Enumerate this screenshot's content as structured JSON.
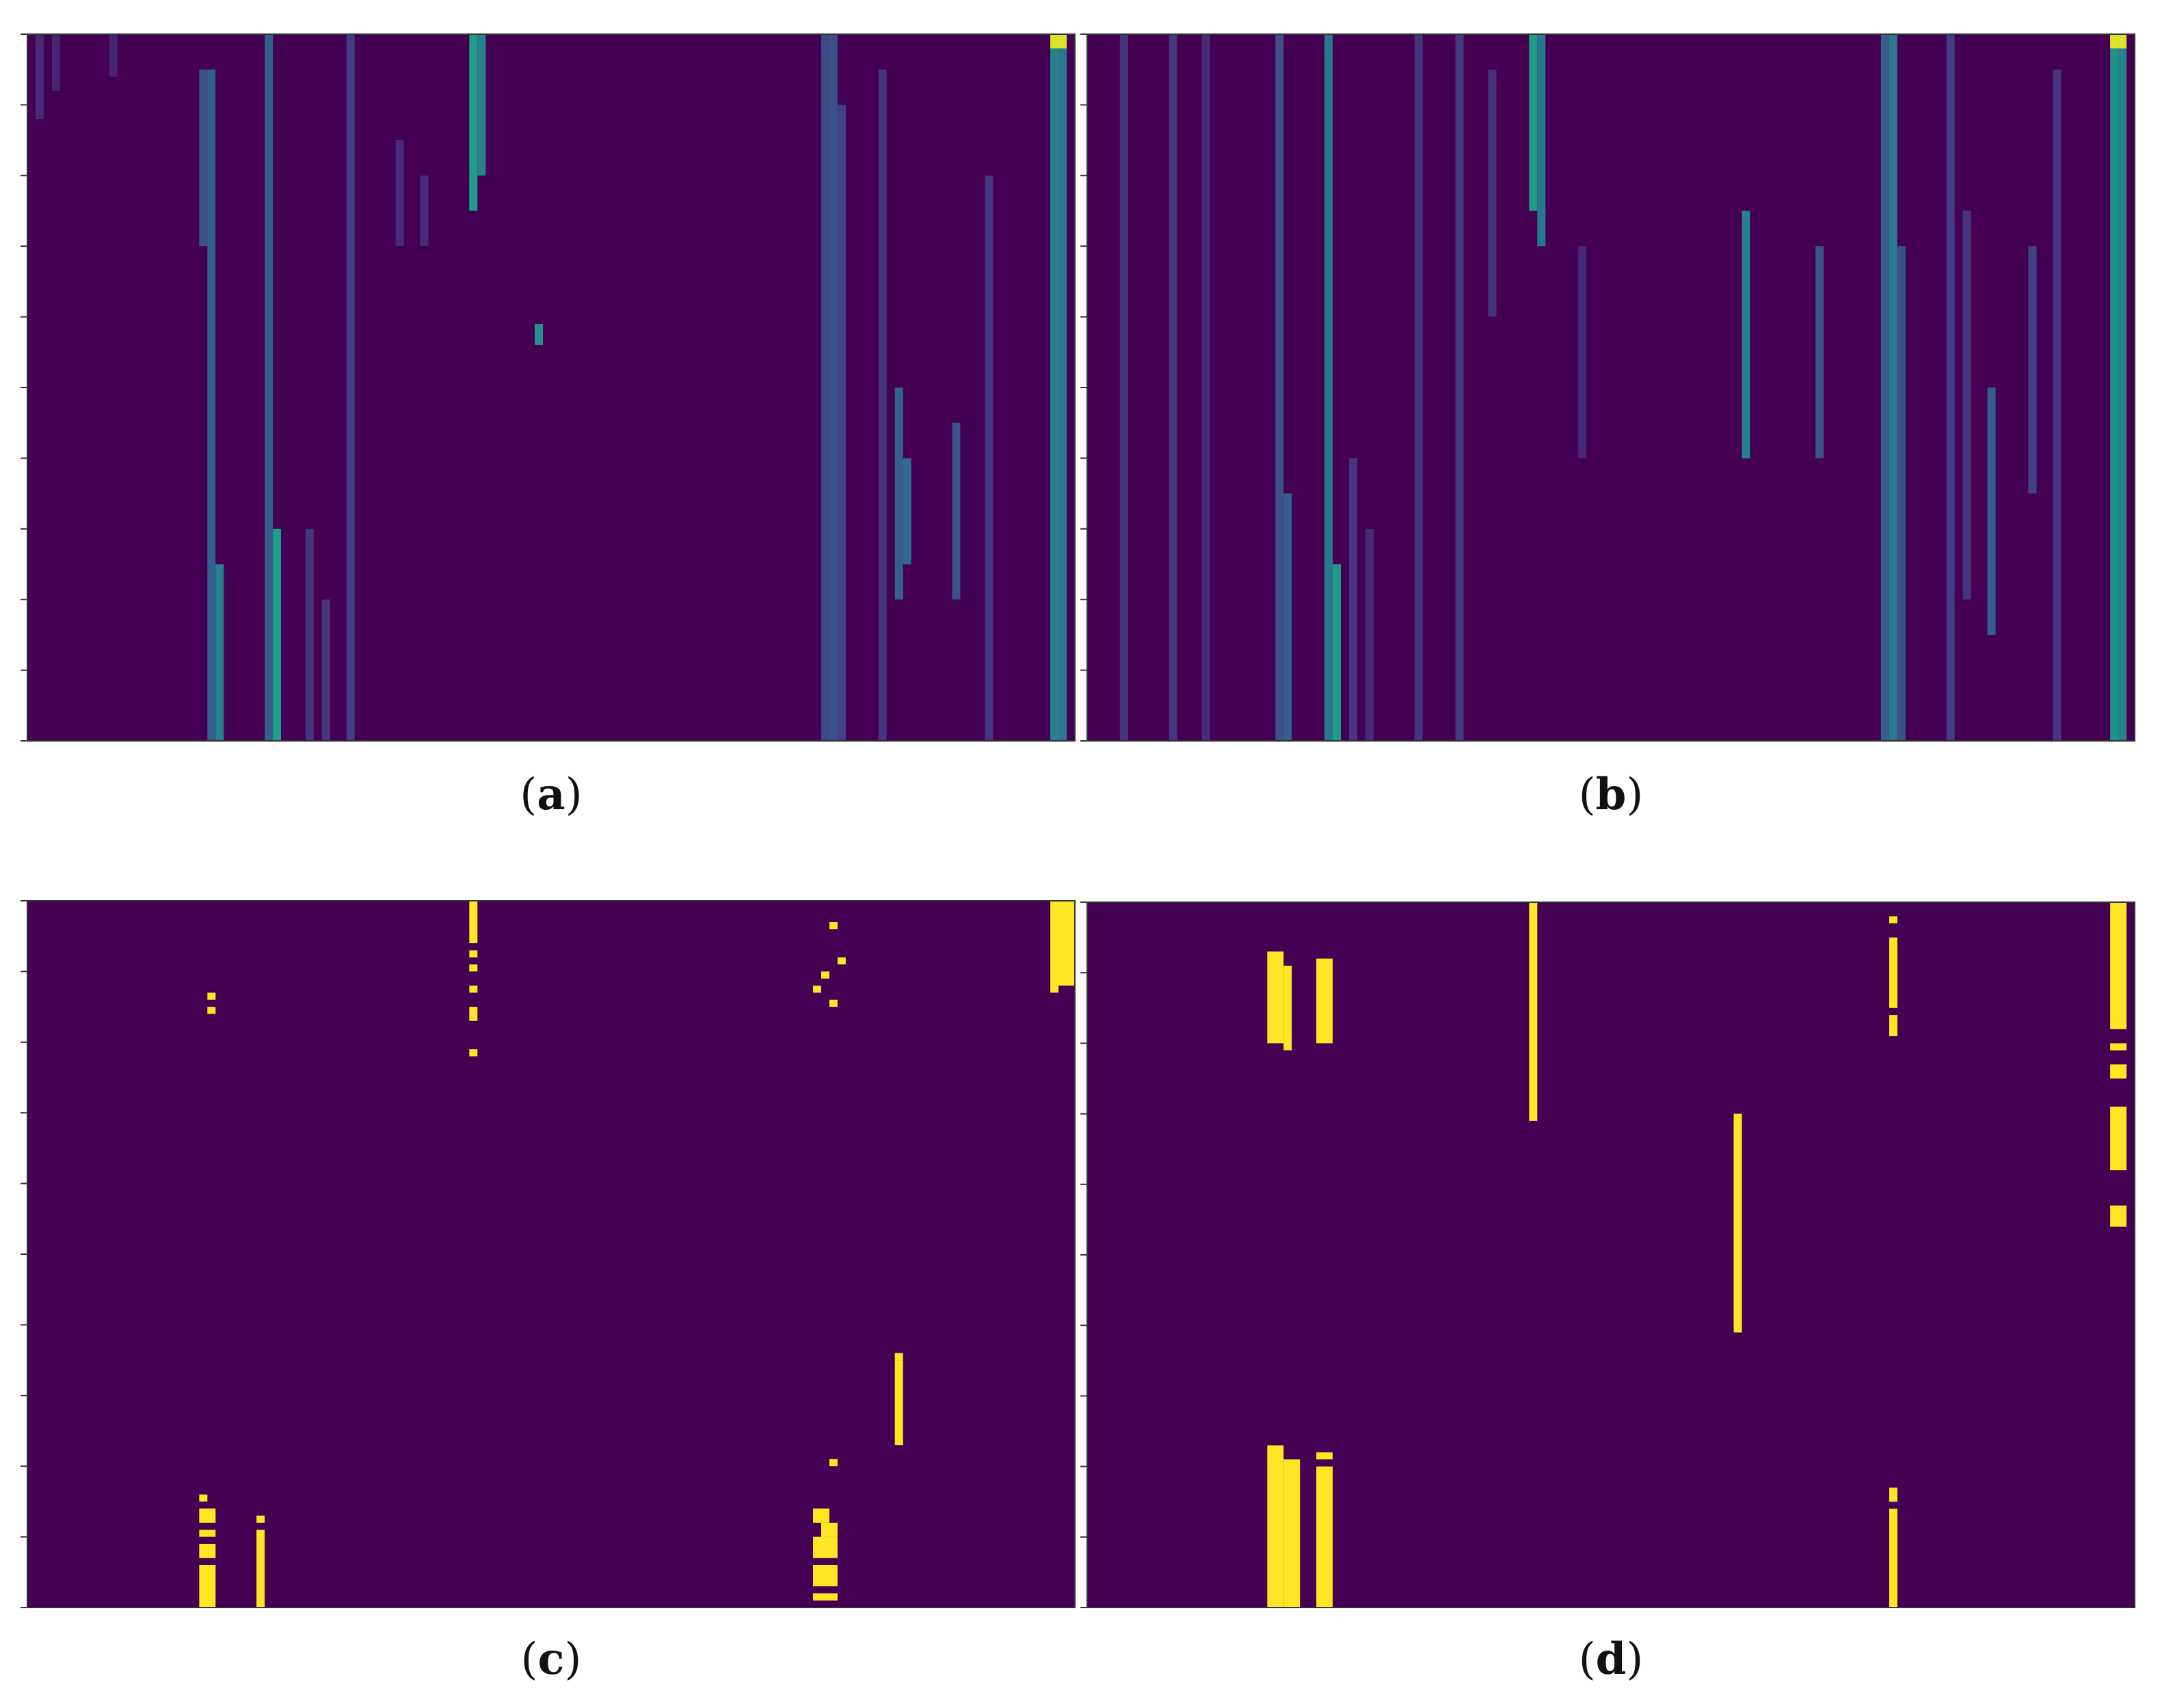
{
  "figure": {
    "background": "#440154",
    "colormap": [
      "#440154",
      "#482878",
      "#3e4989",
      "#31688e",
      "#26828e",
      "#1f9e89",
      "#35b779",
      "#6ece58",
      "#b5de2b",
      "#fde725"
    ],
    "binary_on_color": "#fde725"
  },
  "chart_data": [
    {
      "type": "heatmap",
      "id": "a",
      "caption": "a",
      "value_range": [
        0,
        1
      ],
      "n_columns": 128,
      "n_rows": 100,
      "columns": [
        {
          "col": 1,
          "level": 0.12,
          "rows": [
            0,
            12
          ]
        },
        {
          "col": 3,
          "level": 0.1,
          "rows": [
            0,
            8
          ]
        },
        {
          "col": 10,
          "level": 0.1,
          "rows": [
            0,
            6
          ]
        },
        {
          "col": 21,
          "level": 0.25,
          "rows": [
            5,
            30
          ]
        },
        {
          "col": 22,
          "level": 0.3,
          "rows": [
            5,
            100
          ]
        },
        {
          "col": 23,
          "level": 0.45,
          "rows": [
            75,
            100
          ]
        },
        {
          "col": 29,
          "level": 0.3,
          "rows": [
            0,
            100
          ]
        },
        {
          "col": 30,
          "level": 0.55,
          "rows": [
            70,
            100
          ]
        },
        {
          "col": 34,
          "level": 0.15,
          "rows": [
            70,
            100
          ]
        },
        {
          "col": 36,
          "level": 0.15,
          "rows": [
            80,
            100
          ]
        },
        {
          "col": 39,
          "level": 0.18,
          "rows": [
            0,
            100
          ]
        },
        {
          "col": 45,
          "level": 0.12,
          "rows": [
            15,
            30
          ]
        },
        {
          "col": 48,
          "level": 0.12,
          "rows": [
            20,
            30
          ]
        },
        {
          "col": 54,
          "level": 0.55,
          "rows": [
            0,
            25
          ]
        },
        {
          "col": 55,
          "level": 0.45,
          "rows": [
            0,
            20
          ]
        },
        {
          "col": 62,
          "level": 0.5,
          "rows": [
            41,
            44
          ]
        },
        {
          "col": 97,
          "level": 0.22,
          "rows": [
            0,
            100
          ]
        },
        {
          "col": 98,
          "level": 0.25,
          "rows": [
            0,
            100
          ]
        },
        {
          "col": 99,
          "level": 0.2,
          "rows": [
            10,
            100
          ]
        },
        {
          "col": 104,
          "level": 0.15,
          "rows": [
            5,
            100
          ]
        },
        {
          "col": 106,
          "level": 0.3,
          "rows": [
            50,
            80
          ]
        },
        {
          "col": 107,
          "level": 0.35,
          "rows": [
            60,
            75
          ]
        },
        {
          "col": 113,
          "level": 0.25,
          "rows": [
            55,
            80
          ]
        },
        {
          "col": 117,
          "level": 0.15,
          "rows": [
            20,
            100
          ]
        },
        {
          "col": 125,
          "level": 0.45,
          "rows": [
            0,
            100
          ]
        },
        {
          "col": 126,
          "level": 0.4,
          "rows": [
            0,
            100
          ]
        },
        {
          "col": 125,
          "level": 0.95,
          "rows": [
            0,
            2
          ]
        },
        {
          "col": 126,
          "level": 0.95,
          "rows": [
            0,
            2
          ]
        }
      ]
    },
    {
      "type": "heatmap",
      "id": "b",
      "caption": "b",
      "value_range": [
        0,
        1
      ],
      "n_columns": 128,
      "n_rows": 100,
      "columns": [
        {
          "col": 4,
          "level": 0.15,
          "rows": [
            0,
            100
          ]
        },
        {
          "col": 10,
          "level": 0.15,
          "rows": [
            0,
            100
          ]
        },
        {
          "col": 14,
          "level": 0.12,
          "rows": [
            0,
            100
          ]
        },
        {
          "col": 23,
          "level": 0.25,
          "rows": [
            0,
            100
          ]
        },
        {
          "col": 24,
          "level": 0.3,
          "rows": [
            65,
            100
          ]
        },
        {
          "col": 29,
          "level": 0.4,
          "rows": [
            0,
            100
          ]
        },
        {
          "col": 30,
          "level": 0.55,
          "rows": [
            75,
            100
          ]
        },
        {
          "col": 32,
          "level": 0.15,
          "rows": [
            60,
            100
          ]
        },
        {
          "col": 34,
          "level": 0.12,
          "rows": [
            70,
            100
          ]
        },
        {
          "col": 40,
          "level": 0.15,
          "rows": [
            0,
            100
          ]
        },
        {
          "col": 45,
          "level": 0.18,
          "rows": [
            0,
            100
          ]
        },
        {
          "col": 49,
          "level": 0.15,
          "rows": [
            5,
            40
          ]
        },
        {
          "col": 54,
          "level": 0.55,
          "rows": [
            0,
            25
          ]
        },
        {
          "col": 55,
          "level": 0.4,
          "rows": [
            0,
            30
          ]
        },
        {
          "col": 60,
          "level": 0.12,
          "rows": [
            30,
            60
          ]
        },
        {
          "col": 80,
          "level": 0.45,
          "rows": [
            25,
            60
          ]
        },
        {
          "col": 89,
          "level": 0.25,
          "rows": [
            30,
            60
          ]
        },
        {
          "col": 97,
          "level": 0.3,
          "rows": [
            0,
            100
          ]
        },
        {
          "col": 98,
          "level": 0.4,
          "rows": [
            0,
            100
          ]
        },
        {
          "col": 99,
          "level": 0.25,
          "rows": [
            30,
            100
          ]
        },
        {
          "col": 105,
          "level": 0.18,
          "rows": [
            0,
            100
          ]
        },
        {
          "col": 107,
          "level": 0.15,
          "rows": [
            25,
            80
          ]
        },
        {
          "col": 110,
          "level": 0.3,
          "rows": [
            50,
            85
          ]
        },
        {
          "col": 115,
          "level": 0.2,
          "rows": [
            30,
            65
          ]
        },
        {
          "col": 118,
          "level": 0.15,
          "rows": [
            5,
            100
          ]
        },
        {
          "col": 125,
          "level": 0.5,
          "rows": [
            0,
            100
          ]
        },
        {
          "col": 126,
          "level": 0.45,
          "rows": [
            0,
            100
          ]
        },
        {
          "col": 125,
          "level": 0.95,
          "rows": [
            0,
            2
          ]
        },
        {
          "col": 126,
          "level": 0.95,
          "rows": [
            0,
            2
          ]
        }
      ]
    },
    {
      "type": "heatmap",
      "id": "c",
      "caption": "c",
      "value_range": [
        0,
        1
      ],
      "n_columns": 128,
      "n_rows": 100,
      "binary": true,
      "active_segments": [
        {
          "cols": [
            54,
            55
          ],
          "rows": [
            0,
            6
          ]
        },
        {
          "cols": [
            54,
            55
          ],
          "rows": [
            7,
            8
          ]
        },
        {
          "cols": [
            54,
            55
          ],
          "rows": [
            9,
            10
          ]
        },
        {
          "cols": [
            54,
            55
          ],
          "rows": [
            12,
            13
          ]
        },
        {
          "cols": [
            54,
            55
          ],
          "rows": [
            15,
            16
          ]
        },
        {
          "cols": [
            54,
            55
          ],
          "rows": [
            16,
            17
          ]
        },
        {
          "cols": [
            54,
            55
          ],
          "rows": [
            21,
            22
          ]
        },
        {
          "cols": [
            22,
            23
          ],
          "rows": [
            13,
            14
          ]
        },
        {
          "cols": [
            22,
            23
          ],
          "rows": [
            15,
            16
          ]
        },
        {
          "cols": [
            98,
            99
          ],
          "rows": [
            3,
            4
          ]
        },
        {
          "cols": [
            99,
            100
          ],
          "rows": [
            8,
            9
          ]
        },
        {
          "cols": [
            97,
            98
          ],
          "rows": [
            10,
            11
          ]
        },
        {
          "cols": [
            96,
            97
          ],
          "rows": [
            12,
            13
          ]
        },
        {
          "cols": [
            98,
            99
          ],
          "rows": [
            14,
            15
          ]
        },
        {
          "cols": [
            125,
            128
          ],
          "rows": [
            0,
            12
          ]
        },
        {
          "cols": [
            125,
            126
          ],
          "rows": [
            12,
            13
          ]
        },
        {
          "cols": [
            106,
            107
          ],
          "rows": [
            64,
            65
          ]
        },
        {
          "cols": [
            106,
            107
          ],
          "rows": [
            65,
            77
          ]
        },
        {
          "cols": [
            98,
            99
          ],
          "rows": [
            79,
            80
          ]
        },
        {
          "cols": [
            21,
            22
          ],
          "rows": [
            84,
            85
          ]
        },
        {
          "cols": [
            21,
            23
          ],
          "rows": [
            86,
            88
          ]
        },
        {
          "cols": [
            21,
            23
          ],
          "rows": [
            89,
            90
          ]
        },
        {
          "cols": [
            21,
            23
          ],
          "rows": [
            91,
            93
          ]
        },
        {
          "cols": [
            21,
            23
          ],
          "rows": [
            94,
            100
          ]
        },
        {
          "cols": [
            28,
            29
          ],
          "rows": [
            87,
            88
          ]
        },
        {
          "cols": [
            28,
            29
          ],
          "rows": [
            89,
            100
          ]
        },
        {
          "cols": [
            96,
            98
          ],
          "rows": [
            86,
            88
          ]
        },
        {
          "cols": [
            97,
            99
          ],
          "rows": [
            88,
            90
          ]
        },
        {
          "cols": [
            96,
            99
          ],
          "rows": [
            90,
            93
          ]
        },
        {
          "cols": [
            96,
            99
          ],
          "rows": [
            94,
            97
          ]
        },
        {
          "cols": [
            96,
            99
          ],
          "rows": [
            98,
            99
          ]
        }
      ]
    },
    {
      "type": "heatmap",
      "id": "d",
      "caption": "d",
      "value_range": [
        0,
        1
      ],
      "n_columns": 128,
      "n_rows": 100,
      "binary": true,
      "active_segments": [
        {
          "cols": [
            54,
            55
          ],
          "rows": [
            0,
            31
          ]
        },
        {
          "cols": [
            22,
            24
          ],
          "rows": [
            7,
            20
          ]
        },
        {
          "cols": [
            24,
            25
          ],
          "rows": [
            9,
            21
          ]
        },
        {
          "cols": [
            28,
            30
          ],
          "rows": [
            8,
            20
          ]
        },
        {
          "cols": [
            98,
            99
          ],
          "rows": [
            2,
            3
          ]
        },
        {
          "cols": [
            98,
            99
          ],
          "rows": [
            5,
            15
          ]
        },
        {
          "cols": [
            98,
            99
          ],
          "rows": [
            16,
            19
          ]
        },
        {
          "cols": [
            125,
            127
          ],
          "rows": [
            0,
            17
          ]
        },
        {
          "cols": [
            125,
            127
          ],
          "rows": [
            17,
            18
          ]
        },
        {
          "cols": [
            125,
            127
          ],
          "rows": [
            20,
            21
          ]
        },
        {
          "cols": [
            125,
            127
          ],
          "rows": [
            23,
            25
          ]
        },
        {
          "cols": [
            125,
            127
          ],
          "rows": [
            29,
            38
          ]
        },
        {
          "cols": [
            125,
            127
          ],
          "rows": [
            43,
            46
          ]
        },
        {
          "cols": [
            79,
            80
          ],
          "rows": [
            30,
            61
          ]
        },
        {
          "cols": [
            22,
            24
          ],
          "rows": [
            77,
            100
          ]
        },
        {
          "cols": [
            24,
            26
          ],
          "rows": [
            79,
            100
          ]
        },
        {
          "cols": [
            28,
            30
          ],
          "rows": [
            78,
            79
          ]
        },
        {
          "cols": [
            28,
            30
          ],
          "rows": [
            80,
            100
          ]
        },
        {
          "cols": [
            98,
            99
          ],
          "rows": [
            83,
            85
          ]
        },
        {
          "cols": [
            98,
            99
          ],
          "rows": [
            86,
            100
          ]
        }
      ]
    }
  ]
}
